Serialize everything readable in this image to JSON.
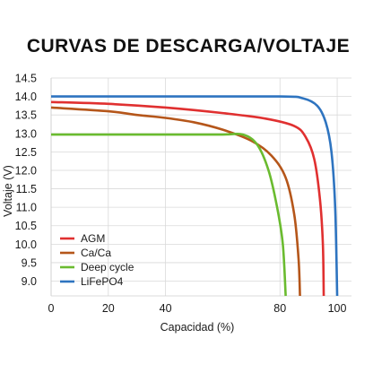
{
  "chart_data": {
    "type": "line",
    "title": "CURVAS DE DESCARGA/VOLTAJE",
    "xlabel": "Capacidad (%)",
    "ylabel": "Voltaje (V)",
    "xlim": [
      0,
      105
    ],
    "ylim": [
      8.6,
      14.5
    ],
    "x_ticks": [
      0,
      20,
      40,
      80,
      100
    ],
    "y_ticks": [
      9.0,
      9.5,
      10.0,
      10.5,
      11.0,
      11.5,
      12.0,
      12.5,
      13.0,
      13.5,
      14.0,
      14.5
    ],
    "grid": true,
    "legend_position": "bottom-left",
    "series": [
      {
        "name": "AGM",
        "color": "#e03030",
        "points": [
          [
            0,
            13.85
          ],
          [
            20,
            13.8
          ],
          [
            40,
            13.7
          ],
          [
            60,
            13.55
          ],
          [
            75,
            13.4
          ],
          [
            85,
            13.2
          ],
          [
            89,
            12.9
          ],
          [
            92,
            12.3
          ],
          [
            94,
            11.2
          ],
          [
            95,
            10.0
          ],
          [
            95.3,
            8.6
          ]
        ]
      },
      {
        "name": "Ca/Ca",
        "color": "#b5561a",
        "points": [
          [
            0,
            13.7
          ],
          [
            20,
            13.6
          ],
          [
            30,
            13.5
          ],
          [
            40,
            13.42
          ],
          [
            50,
            13.3
          ],
          [
            60,
            13.1
          ],
          [
            70,
            12.8
          ],
          [
            77,
            12.4
          ],
          [
            82,
            11.8
          ],
          [
            85,
            10.8
          ],
          [
            86.5,
            9.6
          ],
          [
            87,
            8.6
          ]
        ]
      },
      {
        "name": "Deep cycle",
        "color": "#6abb2f",
        "points": [
          [
            0,
            12.97
          ],
          [
            40,
            12.97
          ],
          [
            60,
            12.97
          ],
          [
            67,
            12.97
          ],
          [
            72,
            12.7
          ],
          [
            76,
            12.0
          ],
          [
            79,
            11.0
          ],
          [
            81,
            10.0
          ],
          [
            82,
            8.6
          ]
        ]
      },
      {
        "name": "LiFePO4",
        "color": "#2e74c0",
        "points": [
          [
            0,
            14.0
          ],
          [
            40,
            14.0
          ],
          [
            80,
            14.0
          ],
          [
            88,
            13.95
          ],
          [
            93,
            13.75
          ],
          [
            96,
            13.3
          ],
          [
            98,
            12.5
          ],
          [
            99.3,
            11.0
          ],
          [
            100,
            8.6
          ]
        ]
      }
    ]
  }
}
